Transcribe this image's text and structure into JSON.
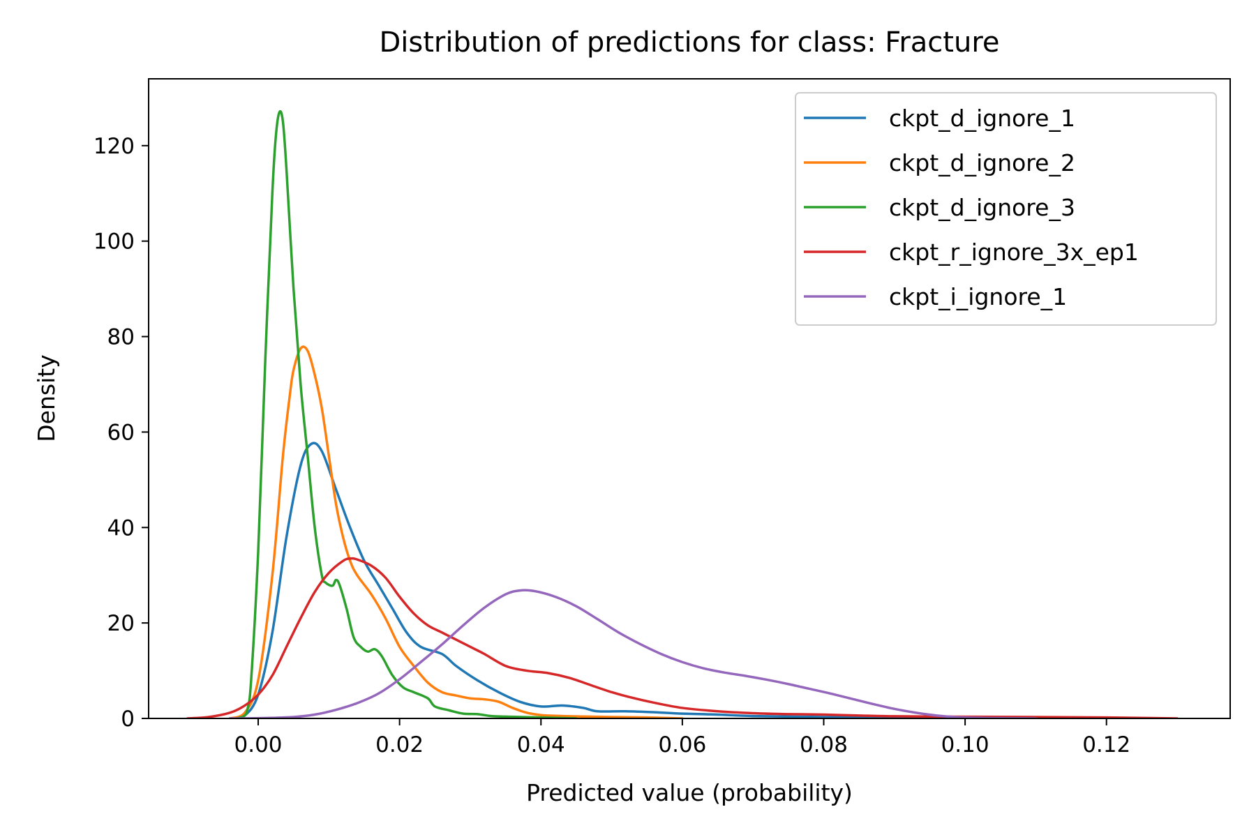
{
  "chart_data": {
    "type": "line",
    "title": "Distribution of predictions for class: Fracture",
    "xlabel": "Predicted value (probability)",
    "ylabel": "Density",
    "xlim": [
      -0.0155,
      0.1375
    ],
    "ylim": [
      0,
      134
    ],
    "xticks": [
      0.0,
      0.02,
      0.04,
      0.06,
      0.08,
      0.1,
      0.12
    ],
    "xtick_labels": [
      "0.00",
      "0.02",
      "0.04",
      "0.06",
      "0.08",
      "0.10",
      "0.12"
    ],
    "yticks": [
      0,
      20,
      40,
      60,
      80,
      100,
      120
    ],
    "ytick_labels": [
      "0",
      "20",
      "40",
      "60",
      "80",
      "100",
      "120"
    ],
    "grid": false,
    "legend_position": "top-right",
    "series": [
      {
        "name": "ckpt_d_ignore_1",
        "color": "#1f77b4",
        "points": [
          [
            -0.004,
            0
          ],
          [
            -0.002,
            0.5
          ],
          [
            0.0,
            5
          ],
          [
            0.002,
            18
          ],
          [
            0.004,
            38
          ],
          [
            0.006,
            53
          ],
          [
            0.0075,
            57.5
          ],
          [
            0.009,
            56
          ],
          [
            0.011,
            48
          ],
          [
            0.013,
            40
          ],
          [
            0.015,
            33
          ],
          [
            0.017,
            28
          ],
          [
            0.019,
            23
          ],
          [
            0.021,
            18
          ],
          [
            0.023,
            15
          ],
          [
            0.026,
            13.5
          ],
          [
            0.028,
            11
          ],
          [
            0.031,
            8
          ],
          [
            0.034,
            5.5
          ],
          [
            0.037,
            3.5
          ],
          [
            0.04,
            2.5
          ],
          [
            0.043,
            2.7
          ],
          [
            0.046,
            2.2
          ],
          [
            0.048,
            1.5
          ],
          [
            0.052,
            1.5
          ],
          [
            0.056,
            1.3
          ],
          [
            0.06,
            1.0
          ],
          [
            0.065,
            0.8
          ],
          [
            0.07,
            0.5
          ],
          [
            0.08,
            0.3
          ],
          [
            0.09,
            0.15
          ],
          [
            0.1,
            0.05
          ],
          [
            0.11,
            0
          ]
        ]
      },
      {
        "name": "ckpt_d_ignore_2",
        "color": "#ff7f0e",
        "points": [
          [
            -0.004,
            0
          ],
          [
            -0.002,
            1
          ],
          [
            0.0,
            8
          ],
          [
            0.002,
            30
          ],
          [
            0.0035,
            55
          ],
          [
            0.0045,
            68
          ],
          [
            0.005,
            73
          ],
          [
            0.006,
            77.5
          ],
          [
            0.007,
            77
          ],
          [
            0.008,
            72
          ],
          [
            0.009,
            65
          ],
          [
            0.01,
            55
          ],
          [
            0.011,
            45
          ],
          [
            0.012,
            38
          ],
          [
            0.013,
            33
          ],
          [
            0.014,
            30
          ],
          [
            0.016,
            26
          ],
          [
            0.018,
            21
          ],
          [
            0.02,
            15
          ],
          [
            0.022,
            11
          ],
          [
            0.024,
            7.5
          ],
          [
            0.026,
            5.5
          ],
          [
            0.028,
            4.8
          ],
          [
            0.03,
            4.2
          ],
          [
            0.032,
            4.0
          ],
          [
            0.034,
            3.5
          ],
          [
            0.036,
            2.2
          ],
          [
            0.038,
            1.2
          ],
          [
            0.04,
            0.7
          ],
          [
            0.043,
            0.5
          ],
          [
            0.046,
            0.4
          ],
          [
            0.05,
            0.3
          ],
          [
            0.055,
            0.2
          ],
          [
            0.06,
            0
          ]
        ]
      },
      {
        "name": "ckpt_d_ignore_3",
        "color": "#2ca02c",
        "points": [
          [
            -0.003,
            0
          ],
          [
            -0.002,
            0.5
          ],
          [
            -0.0015,
            2
          ],
          [
            -0.001,
            8
          ],
          [
            0.0,
            35
          ],
          [
            0.001,
            75
          ],
          [
            0.002,
            110
          ],
          [
            0.0025,
            122
          ],
          [
            0.003,
            127
          ],
          [
            0.0035,
            125
          ],
          [
            0.004,
            115
          ],
          [
            0.005,
            90
          ],
          [
            0.006,
            70
          ],
          [
            0.007,
            55
          ],
          [
            0.008,
            40
          ],
          [
            0.009,
            30
          ],
          [
            0.0095,
            28.5
          ],
          [
            0.0105,
            27.8
          ],
          [
            0.011,
            29
          ],
          [
            0.0115,
            28
          ],
          [
            0.0125,
            23
          ],
          [
            0.0135,
            17
          ],
          [
            0.0145,
            15
          ],
          [
            0.0155,
            14
          ],
          [
            0.0165,
            14.5
          ],
          [
            0.0175,
            13
          ],
          [
            0.019,
            9
          ],
          [
            0.0205,
            6.5
          ],
          [
            0.022,
            5.5
          ],
          [
            0.024,
            4.2
          ],
          [
            0.025,
            2.5
          ],
          [
            0.027,
            1.7
          ],
          [
            0.029,
            1.0
          ],
          [
            0.031,
            0.9
          ],
          [
            0.033,
            0.5
          ],
          [
            0.036,
            0.35
          ],
          [
            0.04,
            0.2
          ],
          [
            0.045,
            0
          ]
        ]
      },
      {
        "name": "ckpt_r_ignore_3x_ep1",
        "color": "#d62728",
        "points": [
          [
            -0.01,
            0
          ],
          [
            -0.007,
            0.3
          ],
          [
            -0.004,
            1.2
          ],
          [
            -0.002,
            2.6
          ],
          [
            0.0,
            5
          ],
          [
            0.002,
            9
          ],
          [
            0.004,
            15
          ],
          [
            0.006,
            21
          ],
          [
            0.008,
            26.5
          ],
          [
            0.01,
            30.5
          ],
          [
            0.012,
            33
          ],
          [
            0.013,
            33.5
          ],
          [
            0.014,
            33.3
          ],
          [
            0.016,
            32
          ],
          [
            0.018,
            29.5
          ],
          [
            0.02,
            25.5
          ],
          [
            0.022,
            22
          ],
          [
            0.024,
            19.5
          ],
          [
            0.026,
            18
          ],
          [
            0.028,
            16.5
          ],
          [
            0.03,
            15
          ],
          [
            0.032,
            13.5
          ],
          [
            0.035,
            11
          ],
          [
            0.038,
            10
          ],
          [
            0.041,
            9.5
          ],
          [
            0.044,
            8.5
          ],
          [
            0.047,
            7
          ],
          [
            0.05,
            5.5
          ],
          [
            0.053,
            4.3
          ],
          [
            0.056,
            3.3
          ],
          [
            0.06,
            2.2
          ],
          [
            0.065,
            1.5
          ],
          [
            0.07,
            1.1
          ],
          [
            0.075,
            0.9
          ],
          [
            0.08,
            0.8
          ],
          [
            0.085,
            0.6
          ],
          [
            0.09,
            0.45
          ],
          [
            0.1,
            0.35
          ],
          [
            0.11,
            0.3
          ],
          [
            0.12,
            0.2
          ],
          [
            0.13,
            0
          ]
        ]
      },
      {
        "name": "ckpt_i_ignore_1",
        "color": "#9467bd",
        "points": [
          [
            -0.004,
            0
          ],
          [
            0.0,
            0.05
          ],
          [
            0.005,
            0.3
          ],
          [
            0.008,
            0.8
          ],
          [
            0.011,
            1.8
          ],
          [
            0.014,
            3.2
          ],
          [
            0.017,
            5.2
          ],
          [
            0.02,
            8.2
          ],
          [
            0.023,
            11.8
          ],
          [
            0.026,
            15.5
          ],
          [
            0.029,
            19.5
          ],
          [
            0.032,
            23.2
          ],
          [
            0.035,
            26
          ],
          [
            0.037,
            26.8
          ],
          [
            0.039,
            26.7
          ],
          [
            0.042,
            25.5
          ],
          [
            0.045,
            23.5
          ],
          [
            0.048,
            20.8
          ],
          [
            0.051,
            18
          ],
          [
            0.054,
            15.6
          ],
          [
            0.057,
            13.5
          ],
          [
            0.06,
            11.8
          ],
          [
            0.063,
            10.5
          ],
          [
            0.066,
            9.6
          ],
          [
            0.069,
            8.9
          ],
          [
            0.072,
            8.1
          ],
          [
            0.075,
            7.2
          ],
          [
            0.078,
            6.2
          ],
          [
            0.081,
            5.2
          ],
          [
            0.084,
            4.1
          ],
          [
            0.087,
            3.0
          ],
          [
            0.09,
            2.0
          ],
          [
            0.093,
            1.2
          ],
          [
            0.096,
            0.6
          ],
          [
            0.099,
            0.25
          ],
          [
            0.103,
            0.1
          ],
          [
            0.11,
            0
          ]
        ]
      }
    ]
  }
}
